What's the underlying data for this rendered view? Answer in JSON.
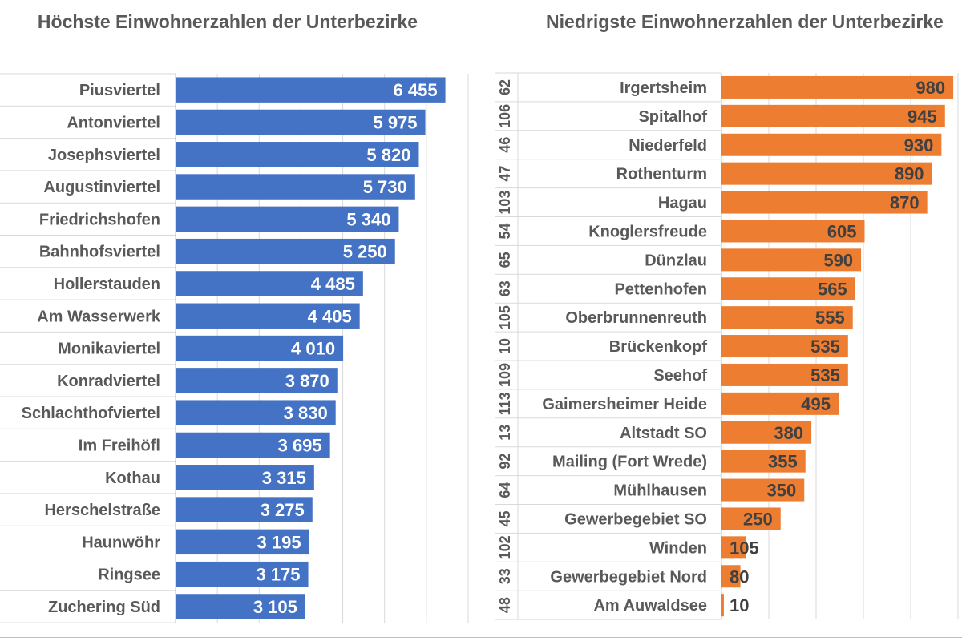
{
  "chart_data": [
    {
      "type": "bar",
      "orientation": "horizontal",
      "title": "Höchste Einwohnerzahlen der Unterbezirke",
      "color": "#4472c4",
      "categories": [
        "Piusviertel",
        "Antonviertel",
        "Josephsviertel",
        "Augustinviertel",
        "Friedrichshofen",
        "Bahnhofsviertel",
        "Hollerstauden",
        "Am Wasserwerk",
        "Monikaviertel",
        "Konradviertel",
        "Schlachthofviertel",
        "Im Freihöfl",
        "Kothau",
        "Herschelstraße",
        "Haunwöhr",
        "Ringsee",
        "Zuchering Süd"
      ],
      "values": [
        6455,
        5975,
        5820,
        5730,
        5340,
        5250,
        4485,
        4405,
        4010,
        3870,
        3830,
        3695,
        3315,
        3275,
        3195,
        3175,
        3105
      ],
      "value_labels": [
        "6 455",
        "5 975",
        "5 820",
        "5 730",
        "5 340",
        "5 250",
        "4 485",
        "4 405",
        "4 010",
        "3 870",
        "3 830",
        "3 695",
        "3 315",
        "3 275",
        "3 195",
        "3 175",
        "3 105"
      ],
      "xlim": [
        0,
        7000
      ],
      "grid": true,
      "data_label_color": "#ffffff"
    },
    {
      "type": "bar",
      "orientation": "horizontal",
      "title": "Niedrigste Einwohnerzahlen der Unterbezirke",
      "color": "#ed7d31",
      "categories": [
        "Irgertsheim",
        "Spitalhof",
        "Niederfeld",
        "Rothenturm",
        "Hagau",
        "Knoglersfreude",
        "Dünzlau",
        "Pettenhofen",
        "Oberbrunnenreuth",
        "Brückenkopf",
        "Seehof",
        "Gaimersheimer Heide",
        "Altstadt SO",
        "Mailing (Fort Wrede)",
        "Mühlhausen",
        "Gewerbegebiet SO",
        "Winden",
        "Gewerbegebiet Nord",
        "Am Auwaldsee"
      ],
      "codes": [
        "62",
        "106",
        "46",
        "47",
        "103",
        "54",
        "65",
        "63",
        "105",
        "10",
        "109",
        "113",
        "13",
        "92",
        "64",
        "45",
        "102",
        "33",
        "48"
      ],
      "values": [
        980,
        945,
        930,
        890,
        870,
        605,
        590,
        565,
        555,
        535,
        535,
        495,
        380,
        355,
        350,
        250,
        105,
        80,
        10
      ],
      "value_labels": [
        "980",
        "945",
        "930",
        "890",
        "870",
        "605",
        "590",
        "565",
        "555",
        "535",
        "535",
        "495",
        "380",
        "355",
        "350",
        "250",
        "105",
        "80",
        "10"
      ],
      "xlim": [
        0,
        1000
      ],
      "grid": true,
      "data_label_color": "#404040"
    }
  ]
}
